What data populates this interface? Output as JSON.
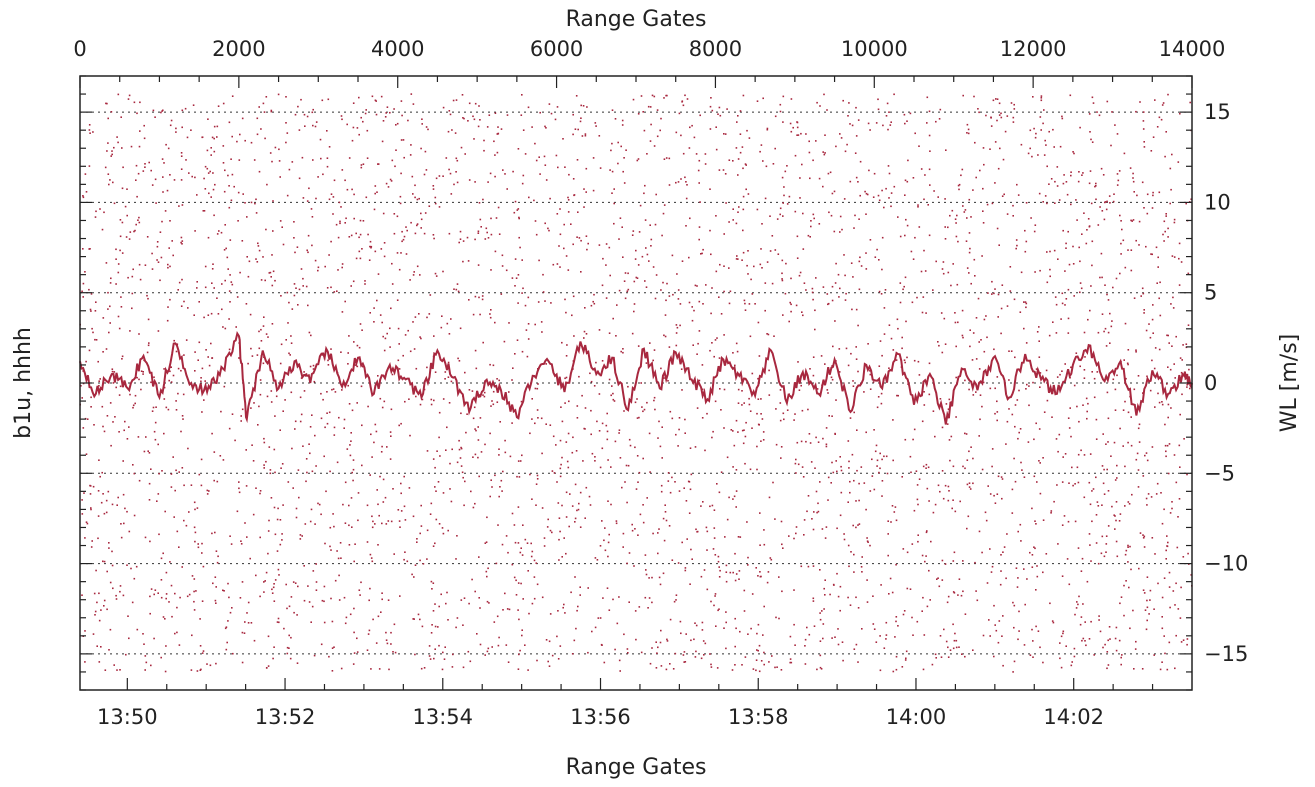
{
  "chart_data": {
    "type": "scatter",
    "title": "",
    "colors": {
      "series": "#a8283f",
      "axis": "#222222",
      "grid": "#333333"
    },
    "grid": "horizontal dashed",
    "legend": "none",
    "x_bottom": {
      "label": "Range Gates",
      "ticks": [
        "13:50",
        "13:52",
        "13:54",
        "13:56",
        "13:58",
        "14:00",
        "14:02"
      ],
      "tick_minutes": [
        0,
        2,
        4,
        6,
        8,
        10,
        12
      ],
      "range_minutes": [
        -0.6,
        13.5
      ]
    },
    "x_top": {
      "label": "Range Gates",
      "ticks": [
        "0",
        "2000",
        "4000",
        "6000",
        "8000",
        "10000",
        "12000",
        "14000"
      ],
      "tick_values": [
        0,
        2000,
        4000,
        6000,
        8000,
        10000,
        12000,
        14000
      ],
      "range": [
        0,
        14000
      ]
    },
    "y_left": {
      "label": "b1u, hhhh"
    },
    "y_right": {
      "label": "WL [m/s]",
      "ticks": [
        "15",
        "10",
        "5",
        "0",
        "−5",
        "−10",
        "−15"
      ],
      "tick_values": [
        15,
        10,
        5,
        0,
        -5,
        -10,
        -15
      ],
      "range": [
        -17,
        17
      ]
    },
    "series": [
      {
        "kind": "scatter",
        "y_range": [
          -16,
          16
        ]
      },
      {
        "kind": "line",
        "x": [
          0,
          200,
          400,
          600,
          800,
          1000,
          1200,
          1400,
          1600,
          1800,
          2000,
          2100,
          2300,
          2500,
          2700,
          2900,
          3100,
          3300,
          3500,
          3700,
          3900,
          4100,
          4300,
          4500,
          4700,
          4900,
          5100,
          5300,
          5500,
          5700,
          5900,
          6100,
          6300,
          6500,
          6700,
          6900,
          7100,
          7300,
          7500,
          7700,
          7900,
          8100,
          8300,
          8500,
          8700,
          8900,
          9100,
          9300,
          9500,
          9700,
          9900,
          10100,
          10300,
          10500,
          10700,
          10900,
          11100,
          11300,
          11500,
          11700,
          11900,
          12100,
          12300,
          12500,
          12700,
          12900,
          13100,
          13300,
          13500,
          13700,
          13900,
          14000
        ],
        "y": [
          1.2,
          -0.6,
          0.5,
          -0.3,
          1.5,
          -0.8,
          2.2,
          0.0,
          -0.5,
          0.8,
          2.6,
          -2.0,
          1.8,
          -0.3,
          1.2,
          0.0,
          1.9,
          -0.2,
          1.4,
          -0.6,
          1.0,
          0.2,
          -0.8,
          1.8,
          0.3,
          -1.6,
          0.1,
          -0.4,
          -1.9,
          0.4,
          1.2,
          -0.5,
          2.3,
          0.5,
          1.4,
          -1.5,
          1.9,
          -0.3,
          1.7,
          0.2,
          -0.9,
          1.3,
          0.4,
          -0.7,
          1.8,
          -1.1,
          0.6,
          -0.6,
          1.3,
          -1.6,
          1.0,
          -0.3,
          1.6,
          -1.2,
          0.5,
          -2.3,
          0.8,
          -0.4,
          1.4,
          -0.8,
          1.6,
          0.2,
          -0.6,
          1.0,
          2.1,
          0.1,
          1.2,
          -1.8,
          0.7,
          -0.6,
          0.4,
          0.0
        ]
      }
    ]
  }
}
